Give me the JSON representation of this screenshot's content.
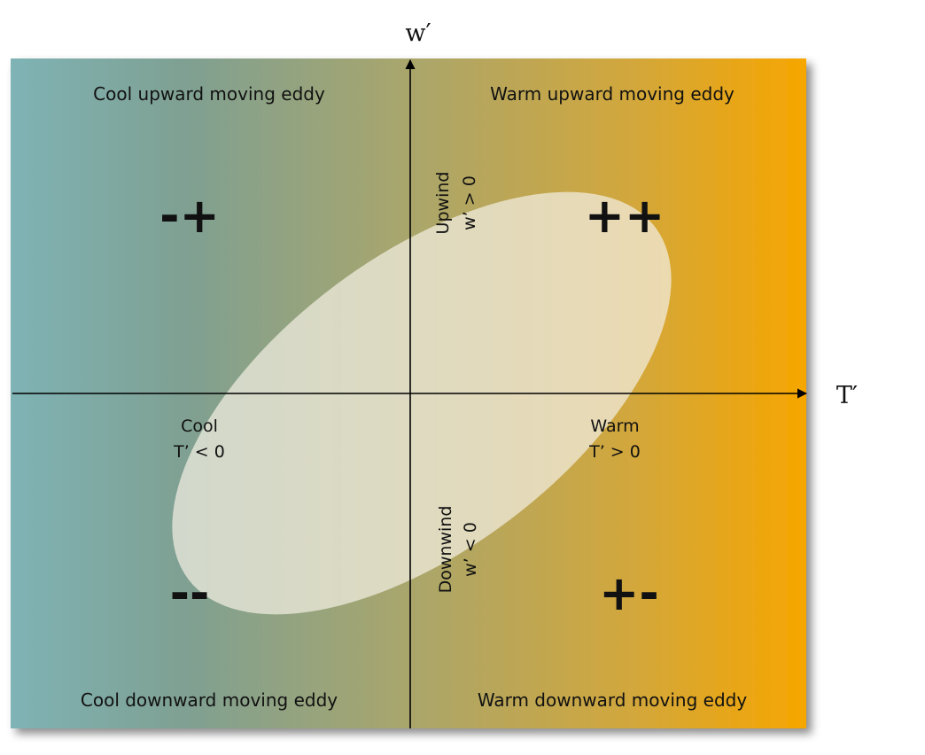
{
  "axes": {
    "horizontal_label": "T′",
    "vertical_label": "w′"
  },
  "quadrants": {
    "top_left": {
      "title": "Cool upward moving eddy",
      "sign": "-+"
    },
    "top_right": {
      "title": "Warm upward moving eddy",
      "sign": "++"
    },
    "bottom_left": {
      "title": "Cool downward moving eddy",
      "sign": "--"
    },
    "bottom_right": {
      "title": "Warm downward moving eddy",
      "sign": "+-"
    }
  },
  "axis_annotations": {
    "cool": {
      "word": "Cool",
      "condition": "T’ < 0"
    },
    "warm": {
      "word": "Warm",
      "condition": "T’ > 0"
    },
    "upwind": {
      "word": "Upwind",
      "condition": "w’ > 0"
    },
    "downwind": {
      "word": "Downwind",
      "condition": "w’ < 0"
    }
  },
  "colors": {
    "cool_edge": "#7fb3b5",
    "warm_edge": "#f7a600",
    "ellipse_fill": "#f3efe2",
    "axis": "#000000"
  }
}
